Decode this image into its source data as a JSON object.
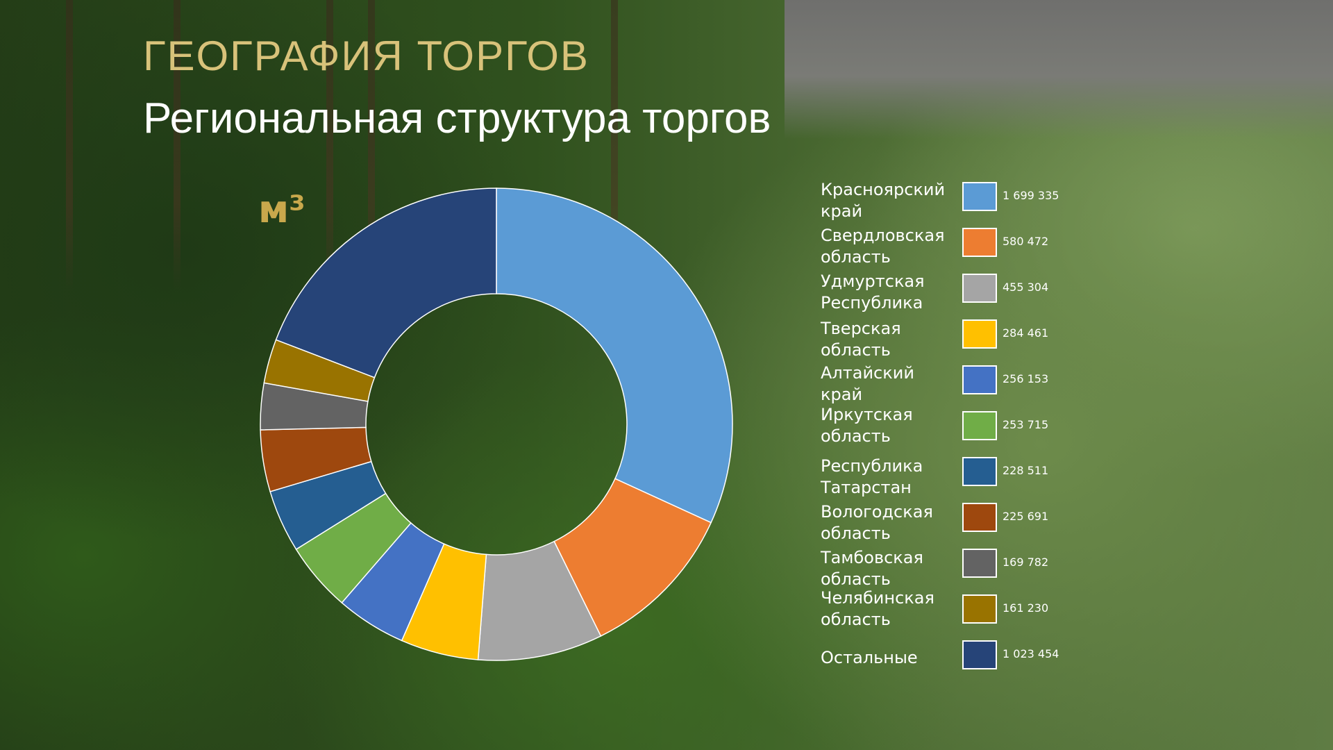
{
  "title": "ГЕОГРАФИЯ ТОРГОВ",
  "subtitle": "Региональная структура торгов",
  "chart_data": {
    "type": "pie",
    "donut": true,
    "unit": "м³",
    "legend_position": "right",
    "categories": [
      "Красноярский край",
      "Свердловская область",
      "Удмуртская Республика",
      "Тверская область",
      "Алтайский край",
      "Иркутская область",
      "Республика Татарстан",
      "Вологодская область",
      "Тамбовская область",
      "Челябинская область",
      "Остальные"
    ],
    "values": [
      1699335,
      580472,
      455304,
      284461,
      256153,
      253715,
      228511,
      225691,
      169782,
      161230,
      1023454
    ],
    "value_labels": [
      "1 699 335",
      "580 472",
      "455 304",
      "284 461",
      "256 153",
      "253 715",
      "228 511",
      "225 691",
      "169 782",
      "161 230",
      "1 023 454"
    ],
    "colors": [
      "#5b9bd5",
      "#ed7d31",
      "#a5a5a5",
      "#ffc000",
      "#4472c4",
      "#70ad47",
      "#255e91",
      "#9e480e",
      "#636363",
      "#997300",
      "#264478"
    ]
  }
}
